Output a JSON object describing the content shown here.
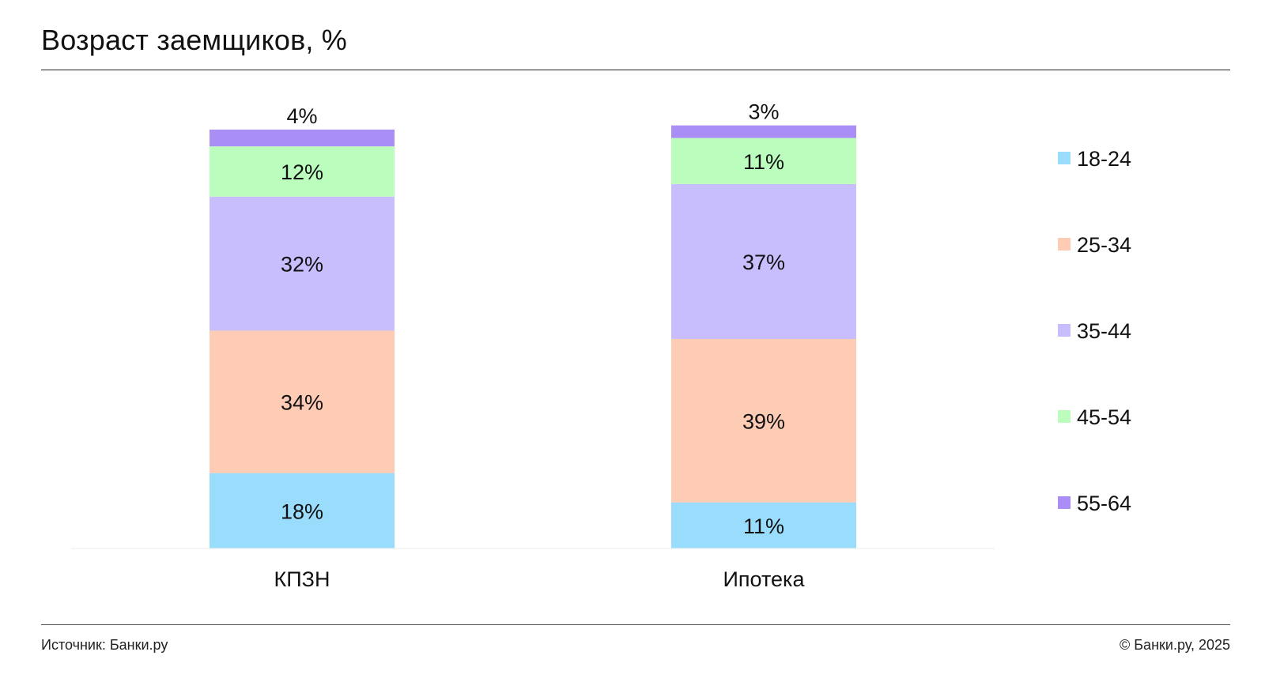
{
  "title": "Возраст заемщиков, %",
  "footer": {
    "source": "Источник: Банки.ру",
    "copyright": "© Банки.ру, 2025"
  },
  "chart_data": {
    "type": "bar",
    "stacked": true,
    "title": "Возраст заемщиков, %",
    "categories": [
      "КПЗН",
      "Ипотека"
    ],
    "series": [
      {
        "name": "18-24",
        "values": [
          18,
          11
        ],
        "color": "#99dcfb"
      },
      {
        "name": "25-34",
        "values": [
          34,
          39
        ],
        "color": "#fecbb4"
      },
      {
        "name": "35-44",
        "values": [
          32,
          37
        ],
        "color": "#c8befd"
      },
      {
        "name": "45-54",
        "values": [
          12,
          11
        ],
        "color": "#bafdbc"
      },
      {
        "name": "55-64",
        "values": [
          4,
          3
        ],
        "color": "#a98ef6"
      }
    ],
    "data_labels": [
      [
        "18%",
        "34%",
        "32%",
        "12%",
        "4%"
      ],
      [
        "11%",
        "39%",
        "37%",
        "11%",
        "3%"
      ]
    ],
    "ylim": [
      0,
      100
    ],
    "grid": false,
    "legend_position": "right"
  }
}
